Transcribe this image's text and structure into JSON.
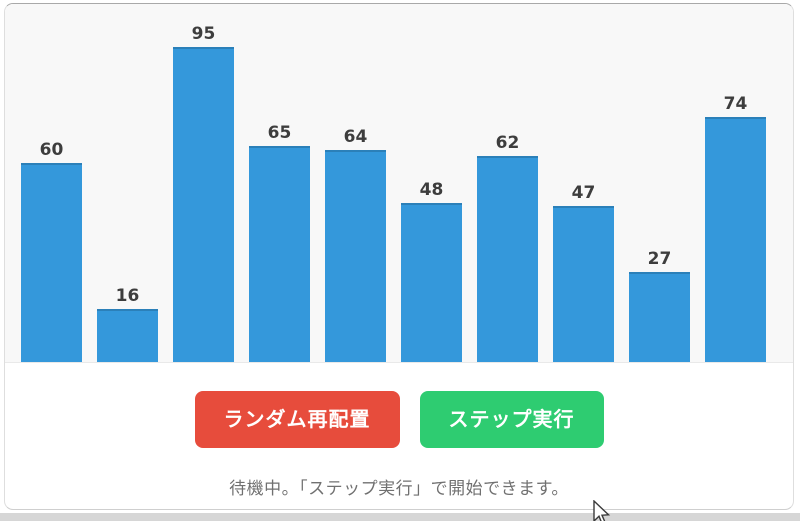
{
  "chart_data": {
    "type": "bar",
    "values": [
      60,
      16,
      95,
      65,
      64,
      48,
      62,
      47,
      27,
      74
    ],
    "data_labels_visible": true,
    "title": "",
    "xlabel": "",
    "ylabel": "",
    "axes_visible": false,
    "grid": false,
    "legend": false,
    "implied_ylim": [
      0,
      100
    ],
    "bar_color": "#3498db"
  },
  "controls": {
    "shuffle_button_label": "ランダム再配置",
    "step_button_label": "ステップ実行"
  },
  "status": {
    "text": "待機中。「ステップ実行」で開始できます。"
  },
  "colors": {
    "bar": "#3498db",
    "bar_border": "#2b80b9",
    "bar_label": "#3d3d3d",
    "shuffle_bg": "#e74c3c",
    "step_bg": "#2ecc71",
    "button_text": "#ffffff",
    "status_text": "#707070",
    "chart_bg": "#f8f8f8",
    "card_bg": "#ffffff"
  }
}
